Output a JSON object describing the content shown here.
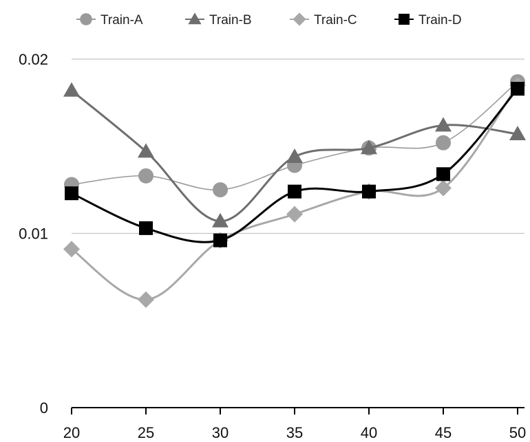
{
  "chart_data": {
    "type": "line",
    "title": "",
    "xlabel": "",
    "ylabel": "",
    "x": [
      20,
      25,
      30,
      35,
      40,
      45,
      50
    ],
    "x_tick_labels": [
      "20",
      "25",
      "30",
      "35",
      "40",
      "45",
      "50"
    ],
    "y_tick_labels": [
      "0",
      "0.01",
      "0.02"
    ],
    "y_ticks": [
      0,
      0.01,
      0.02
    ],
    "ylim": [
      0,
      0.02
    ],
    "xlim": [
      20,
      50
    ],
    "grid": "horizontal",
    "legend_position": "top",
    "smooth": true,
    "series": [
      {
        "name": "Train-A",
        "marker": "circle",
        "color": "#9a9a9a",
        "values": [
          0.0128,
          0.0133,
          0.0125,
          0.0139,
          0.0149,
          0.0152,
          0.0187
        ]
      },
      {
        "name": "Train-B",
        "marker": "triangle",
        "color": "#6e6e6e",
        "values": [
          0.0182,
          0.0147,
          0.0107,
          0.0144,
          0.0149,
          0.0162,
          0.0157
        ]
      },
      {
        "name": "Train-C",
        "marker": "diamond",
        "color": "#a8a8a8",
        "values": [
          0.0091,
          0.0062,
          0.0096,
          0.0111,
          0.0124,
          0.0126,
          0.0185
        ]
      },
      {
        "name": "Train-D",
        "marker": "square",
        "color": "#000000",
        "values": [
          0.0123,
          0.0103,
          0.0096,
          0.0124,
          0.0124,
          0.0134,
          0.0183
        ]
      }
    ]
  }
}
